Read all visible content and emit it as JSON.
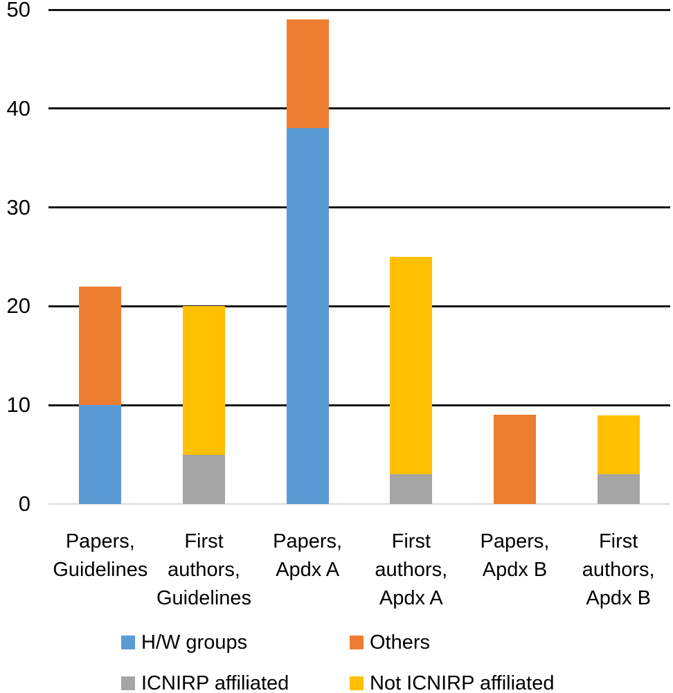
{
  "figure": {
    "background": "#ffffff",
    "text_color": "#000000",
    "gridline_color": "#141414",
    "baseline_color": "#d9d9d9"
  },
  "chart_data": {
    "type": "bar",
    "stacked": true,
    "title": "",
    "xlabel": "",
    "ylabel": "",
    "categories": [
      "Papers, Guidelines",
      "First authors, Guidelines",
      "Papers, Apdx A",
      "First authors, Apdx A",
      "Papers, Apdx B",
      "First authors, Apdx B"
    ],
    "series": [
      {
        "name": "H/W groups",
        "color": "#5B9BD5",
        "values": [
          10,
          0,
          38,
          0,
          0,
          0
        ]
      },
      {
        "name": "Others",
        "color": "#ED7D31",
        "values": [
          12,
          0,
          11,
          0,
          9,
          0
        ]
      },
      {
        "name": "ICNIRP affiliated",
        "color": "#A5A5A5",
        "values": [
          0,
          5,
          0,
          3,
          0,
          3
        ]
      },
      {
        "name": "Not ICNIRP affiliated",
        "color": "#FFC000",
        "values": [
          0,
          15,
          0,
          22,
          0,
          6
        ]
      }
    ],
    "bar_totals": [
      22,
      20,
      49,
      25,
      9,
      9
    ],
    "ylim": [
      0,
      50
    ],
    "yticks": [
      "0",
      "10",
      "20",
      "30",
      "40",
      "50"
    ],
    "grid": true,
    "legend_position": "bottom"
  }
}
